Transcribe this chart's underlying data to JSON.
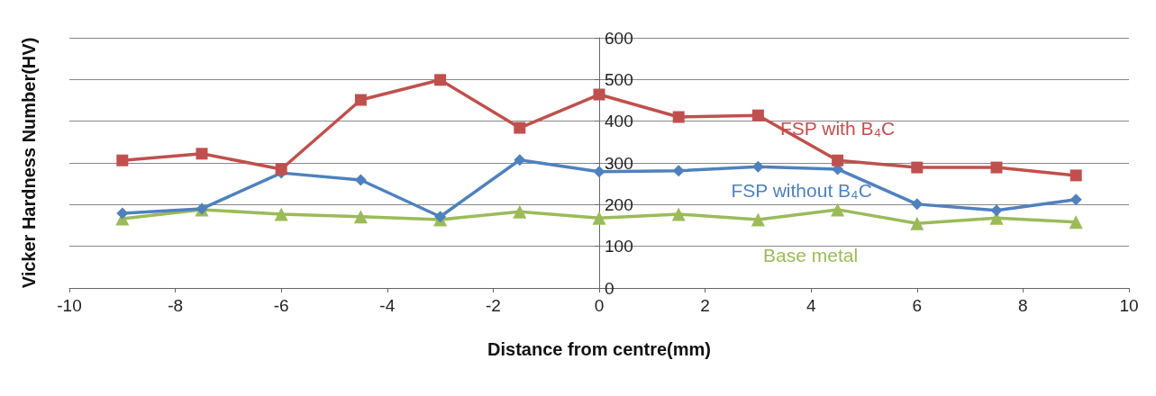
{
  "chart_data": {
    "type": "line",
    "xlabel": "Distance from centre(mm)",
    "ylabel": "Vicker Hardness Number(HV)",
    "x": [
      -9,
      -7.5,
      -6,
      -4.5,
      -3,
      -1.5,
      0,
      1.5,
      3,
      4.5,
      6,
      7.5,
      9
    ],
    "series": [
      {
        "name": "FSP with B₄C",
        "color": "#c0504d",
        "marker": "square",
        "values": [
          306,
          322,
          285,
          451,
          499,
          384,
          464,
          410,
          414,
          306,
          289,
          289,
          270
        ]
      },
      {
        "name": "FSP without B₄C",
        "color": "#4f81bd",
        "marker": "diamond",
        "values": [
          179,
          190,
          276,
          259,
          171,
          307,
          279,
          281,
          291,
          285,
          201,
          186,
          212
        ]
      },
      {
        "name": "Base metal",
        "color": "#9bbb59",
        "marker": "triangle",
        "values": [
          166,
          188,
          177,
          171,
          164,
          183,
          168,
          177,
          164,
          188,
          155,
          168,
          158
        ]
      }
    ],
    "xlim": [
      -10,
      10
    ],
    "xticks": [
      -10,
      -8,
      -6,
      -4,
      -2,
      0,
      2,
      4,
      6,
      8,
      10
    ],
    "ylim": [
      0,
      600
    ],
    "yticks": [
      0,
      100,
      200,
      300,
      400,
      500,
      600
    ],
    "grid": "y",
    "legend": false
  }
}
